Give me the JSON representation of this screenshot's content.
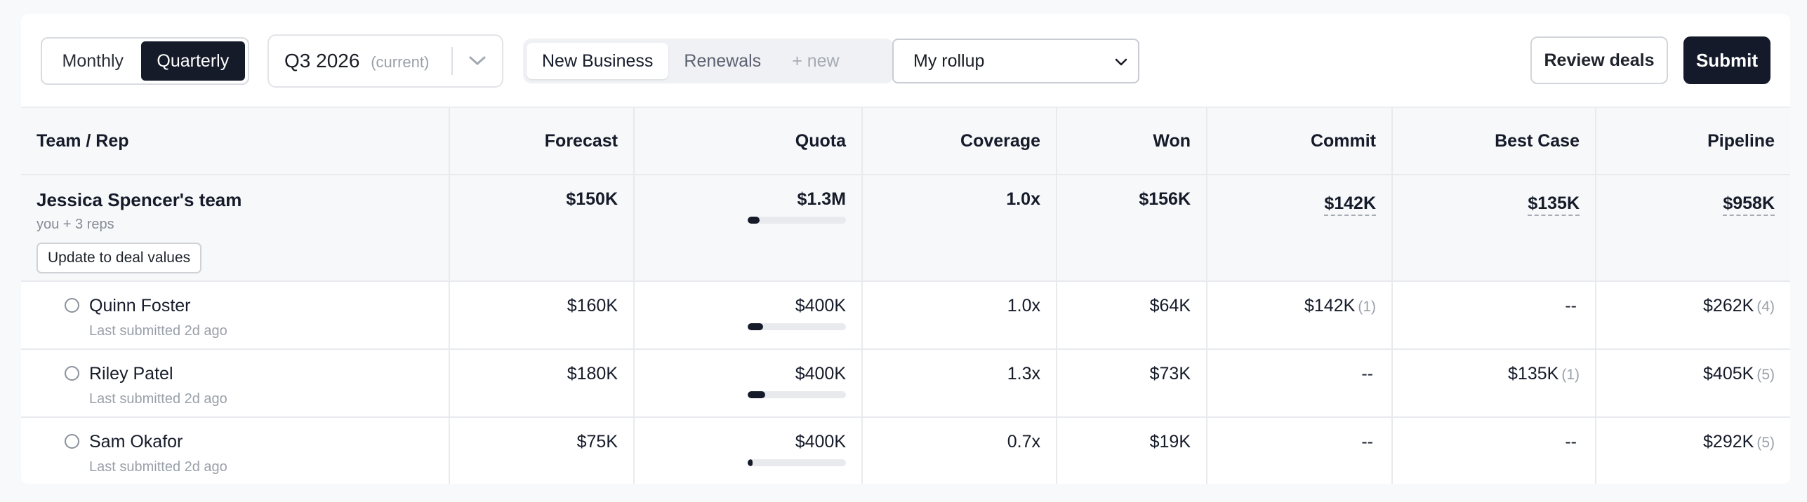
{
  "period_toggle": {
    "options": [
      "Monthly",
      "Quarterly"
    ],
    "selected": "Quarterly"
  },
  "quarter_select": {
    "value": "Q3 2026",
    "note": "(current)"
  },
  "tabs": [
    {
      "label": "New Business",
      "active": true
    },
    {
      "label": "Renewals",
      "active": false
    },
    {
      "label": "+ new",
      "active": false
    }
  ],
  "rollup_select": {
    "value": "My rollup"
  },
  "actions": {
    "review_label": "Review deals",
    "submit_label": "Submit"
  },
  "table": {
    "columns": [
      "Team / Rep",
      "Forecast",
      "Quota",
      "Coverage",
      "Won",
      "Commit",
      "Best Case",
      "Pipeline"
    ],
    "team": {
      "name": "Jessica Spencer's team",
      "sub": "you + 3 reps",
      "update_label": "Update to deal values",
      "forecast": "$150K",
      "quota": "$1.3M",
      "quota_progress": 0.12,
      "coverage": "1.0x",
      "won": "$156K",
      "commit": "$142K",
      "best_case": "$135K",
      "pipeline": "$958K"
    },
    "reps": [
      {
        "name": "Quinn Foster",
        "sub": "Last submitted 2d ago",
        "forecast": "$160K",
        "quota": "$400K",
        "quota_progress": 0.16,
        "coverage": "1.0x",
        "won": "$64K",
        "commit": "$142K",
        "commit_count": "(1)",
        "best_case": "--",
        "best_case_count": "",
        "pipeline": "$262K",
        "pipeline_count": "(4)"
      },
      {
        "name": "Riley Patel",
        "sub": "Last submitted 2d ago",
        "forecast": "$180K",
        "quota": "$400K",
        "quota_progress": 0.18,
        "coverage": "1.3x",
        "won": "$73K",
        "commit": "--",
        "commit_count": "",
        "best_case": "$135K",
        "best_case_count": "(1)",
        "pipeline": "$405K",
        "pipeline_count": "(5)"
      },
      {
        "name": "Sam Okafor",
        "sub": "Last submitted 2d ago",
        "forecast": "$75K",
        "quota": "$400K",
        "quota_progress": 0.05,
        "coverage": "0.7x",
        "won": "$19K",
        "commit": "--",
        "commit_count": "",
        "best_case": "--",
        "best_case_count": "",
        "pipeline": "$292K",
        "pipeline_count": "(5)"
      }
    ]
  }
}
